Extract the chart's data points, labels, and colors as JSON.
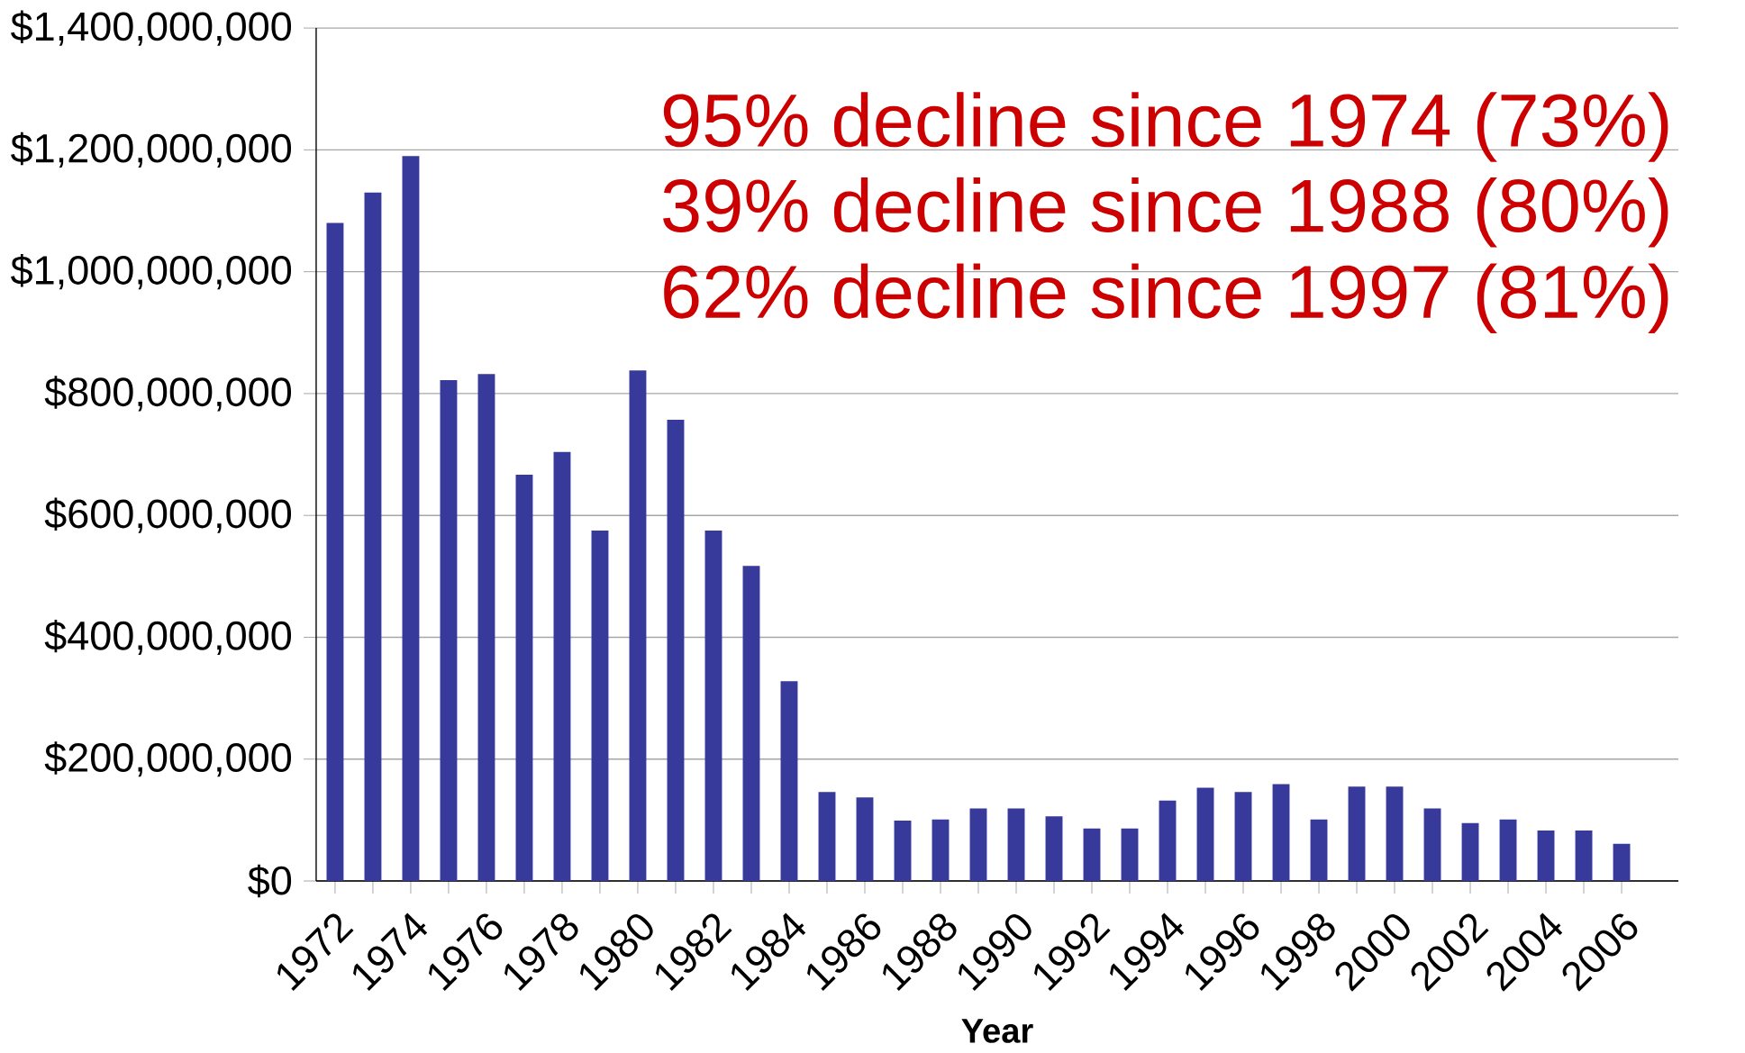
{
  "chart_data": {
    "type": "bar",
    "xlabel": "Year",
    "categories": [
      "1972",
      null,
      "1974",
      null,
      "1976",
      null,
      "1978",
      null,
      "1980",
      null,
      "1982",
      null,
      "1984",
      null,
      "1986",
      null,
      "1988",
      null,
      "1990",
      null,
      "1992",
      null,
      "1994",
      null,
      "1996",
      null,
      "1998",
      null,
      "2000",
      null,
      "2002",
      null,
      "2004",
      null,
      "2006"
    ],
    "values": [
      1080000000,
      1130000000,
      1190000000,
      822000000,
      832000000,
      667000000,
      704000000,
      575000000,
      838000000,
      757000000,
      575000000,
      517000000,
      328000000,
      146000000,
      137000000,
      99000000,
      101000000,
      119000000,
      119000000,
      106000000,
      86000000,
      86000000,
      132000000,
      153000000,
      146000000,
      159000000,
      101000000,
      155000000,
      155000000,
      119000000,
      95000000,
      101000000,
      83000000,
      83000000,
      61000000
    ],
    "color": "#373a9a",
    "ylim": [
      0,
      1400000000
    ],
    "yticks": [
      {
        "value": 0,
        "label": "$0"
      },
      {
        "value": 200000000,
        "label": "$200,000,000"
      },
      {
        "value": 400000000,
        "label": "$400,000,000"
      },
      {
        "value": 600000000,
        "label": "$600,000,000"
      },
      {
        "value": 800000000,
        "label": "$800,000,000"
      },
      {
        "value": 1000000000,
        "label": "$1,000,000,000"
      },
      {
        "value": 1200000000,
        "label": "$1,200,000,000"
      },
      {
        "value": 1400000000,
        "label": "$1,400,000,000"
      }
    ],
    "grid": "y",
    "annotations": [
      "95% decline since 1974 (73%)",
      "39% decline since 1988 (80%)",
      "62% decline since 1997 (81%)"
    ]
  }
}
